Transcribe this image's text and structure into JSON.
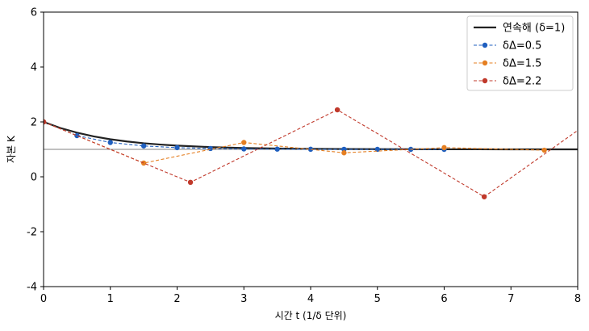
{
  "chart_data": {
    "type": "line",
    "xlabel": "시간 t (1/δ 단위)",
    "ylabel": "자본 K",
    "xlim": [
      0,
      8
    ],
    "ylim": [
      -4,
      6
    ],
    "x_ticks": [
      "0",
      "1",
      "2",
      "3",
      "4",
      "5",
      "6",
      "7",
      "8"
    ],
    "y_ticks": [
      "-4",
      "-2",
      "0",
      "2",
      "4",
      "6"
    ],
    "grid": false,
    "legend_position": "top-right",
    "reference_line": {
      "y": 1,
      "color": "#808080"
    },
    "series": [
      {
        "name": "연속해 (δ=1)",
        "style": "solid",
        "color": "#222222",
        "x": [
          0,
          0.25,
          0.5,
          0.75,
          1,
          1.25,
          1.5,
          1.75,
          2,
          2.5,
          3,
          3.5,
          4,
          4.5,
          5,
          5.5,
          6,
          6.5,
          7,
          7.5,
          8
        ],
        "y": [
          2,
          1.779,
          1.607,
          1.472,
          1.368,
          1.287,
          1.223,
          1.174,
          1.135,
          1.082,
          1.05,
          1.03,
          1.018,
          1.011,
          1.007,
          1.004,
          1.002,
          1.002,
          1.001,
          1.001,
          1.0
        ]
      },
      {
        "name": "δΔ=0.5",
        "style": "dashed",
        "color": "#1f5fbf",
        "x": [
          0,
          0.5,
          1,
          1.5,
          2,
          2.5,
          3,
          3.5,
          4,
          4.5,
          5,
          5.5,
          6
        ],
        "y": [
          2,
          1.5,
          1.25,
          1.125,
          1.0625,
          1.031,
          1.016,
          1.008,
          1.004,
          1.002,
          1.001,
          1.0,
          1.0
        ]
      },
      {
        "name": "δΔ=1.5",
        "style": "dashed",
        "color": "#e57f22",
        "x": [
          0,
          1.5,
          3,
          4.5,
          6,
          7.5
        ],
        "y": [
          2,
          0.5,
          1.25,
          0.875,
          1.0625,
          0.97
        ]
      },
      {
        "name": "δΔ=2.2",
        "style": "dashed",
        "color": "#c0392b",
        "x": [
          0,
          2.2,
          4.4,
          6.6,
          8.8
        ],
        "y": [
          2,
          -0.2,
          2.44,
          -0.728,
          3.07
        ]
      }
    ]
  }
}
